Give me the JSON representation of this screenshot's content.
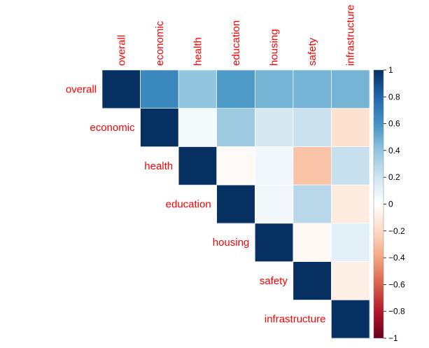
{
  "chart_data": {
    "type": "heatmap",
    "subtype": "correlation-matrix-upper-triangle",
    "variables": [
      "overall",
      "economic",
      "health",
      "education",
      "housing",
      "safety",
      "infrastructure"
    ],
    "matrix": [
      [
        1.0,
        0.65,
        0.4,
        0.57,
        0.47,
        0.47,
        0.47
      ],
      [
        0.65,
        1.0,
        0.05,
        0.36,
        0.18,
        0.22,
        -0.16
      ],
      [
        0.4,
        0.05,
        1.0,
        -0.03,
        0.06,
        -0.29,
        0.23
      ],
      [
        0.57,
        0.36,
        -0.03,
        1.0,
        0.06,
        0.28,
        -0.11
      ],
      [
        0.47,
        0.18,
        0.06,
        0.06,
        1.0,
        -0.04,
        0.12
      ],
      [
        0.47,
        0.22,
        -0.29,
        0.28,
        -0.04,
        1.0,
        -0.09
      ],
      [
        0.47,
        -0.16,
        0.23,
        -0.11,
        0.12,
        -0.09,
        1.0
      ]
    ],
    "colorbar": {
      "range": [
        -1,
        1
      ],
      "ticks": [
        "1",
        "0.8",
        "0.6",
        "0.4",
        "0.2",
        "0",
        "−0.2",
        "−0.4",
        "−0.6",
        "−0.8",
        "−1"
      ],
      "palette": [
        "#67001f",
        "#b2182b",
        "#d6604d",
        "#f4a582",
        "#fddbc7",
        "#ffffff",
        "#d1e5f0",
        "#92c5de",
        "#4393c3",
        "#2166ac",
        "#053061"
      ]
    },
    "label_color": "#ff0000"
  }
}
